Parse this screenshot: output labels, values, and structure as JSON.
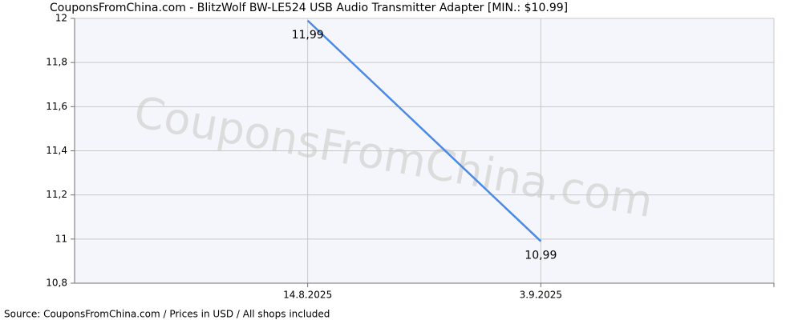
{
  "chart_data": {
    "type": "line",
    "title": "CouponsFromChina.com - BlitzWolf BW-LE524 USB Audio Transmitter Adapter [MIN.: $10.99]",
    "watermark": "CouponsFromChina.com",
    "footer": "Source: CouponsFromChina.com / Prices in USD / All shops included",
    "categories": [
      "14.8.2025",
      "3.9.2025",
      null
    ],
    "series": [
      {
        "color": "#4a8ae6",
        "values": [
          11.99,
          10.99,
          null
        ],
        "value_labels": [
          "11,99",
          "10,99",
          null
        ]
      }
    ],
    "ylim": [
      10.8,
      12
    ],
    "yticks": [
      {
        "value": 10.8,
        "label": "10,8"
      },
      11,
      {
        "value": 11.2,
        "label": "11,2"
      },
      {
        "value": 11.4,
        "label": "11,4"
      },
      {
        "value": 11.6,
        "label": "11,6"
      },
      {
        "value": 11.8,
        "label": "11,8"
      },
      12
    ],
    "grid": true
  }
}
